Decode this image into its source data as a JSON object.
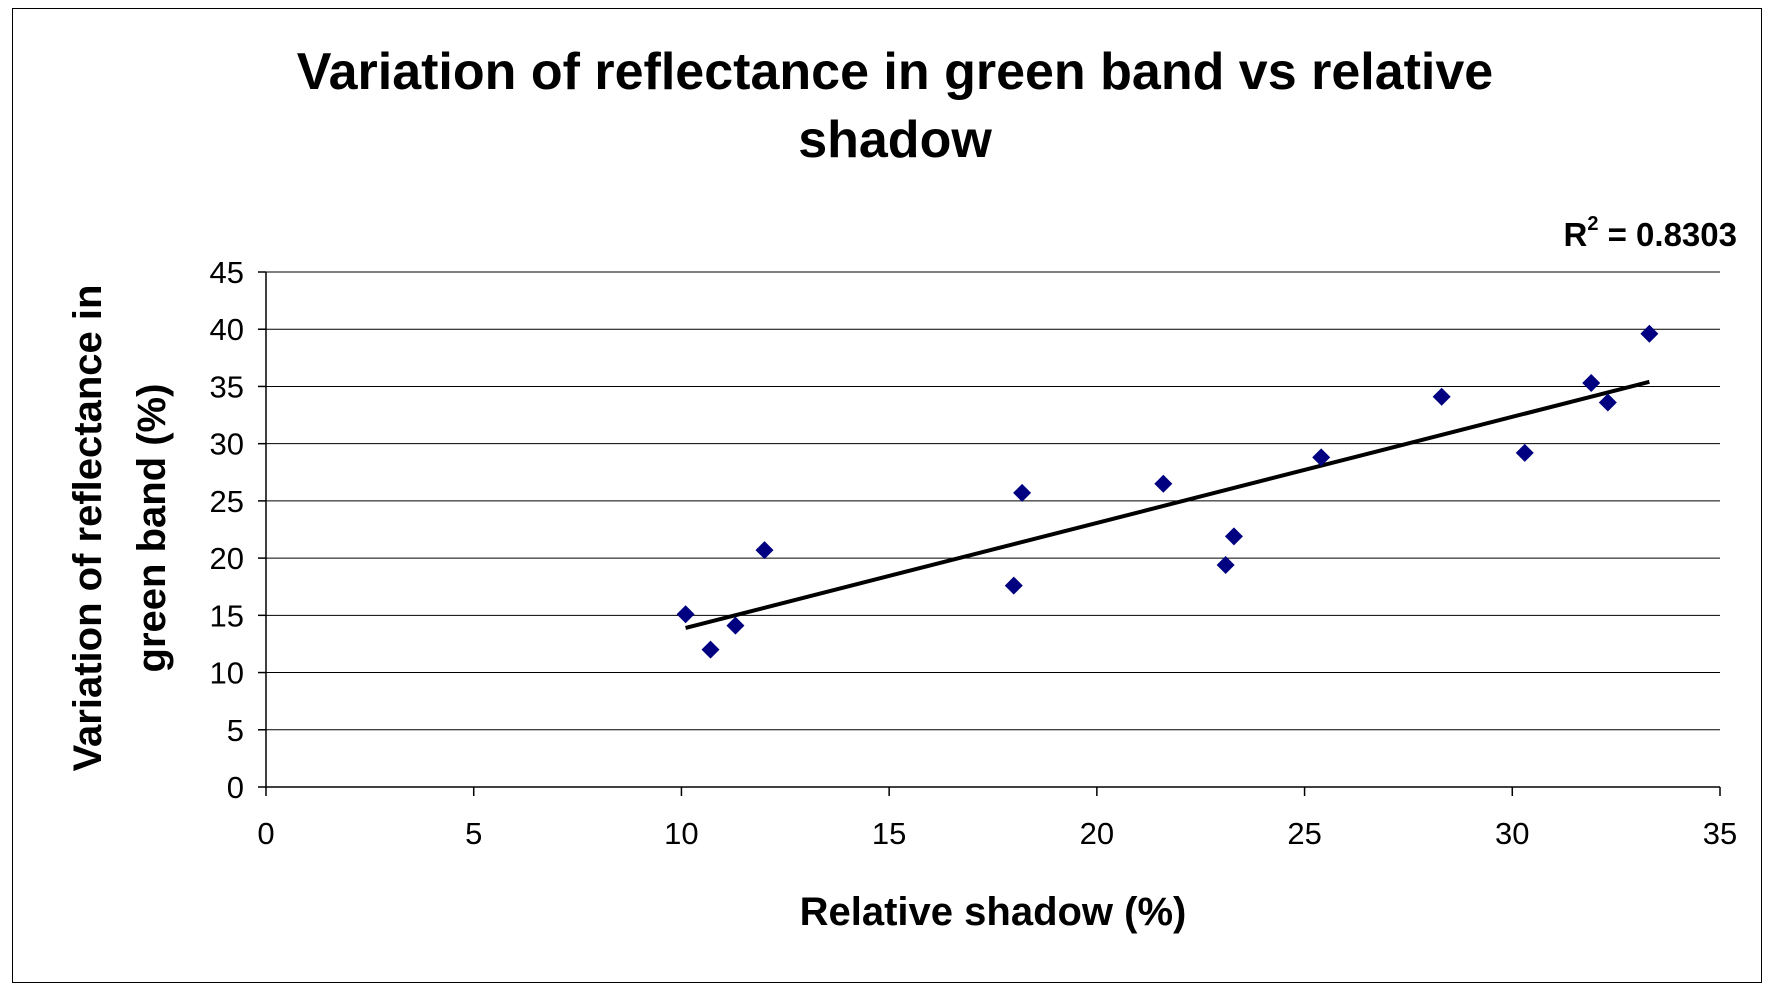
{
  "chart_data": {
    "type": "scatter",
    "title_lines": [
      "Variation of reflectance in green band vs relative",
      "shadow"
    ],
    "xlabel": "Relative shadow (%)",
    "ylabel_lines": [
      "Variation of reflectance in",
      "green band (%)"
    ],
    "xlim": [
      0,
      35
    ],
    "ylim": [
      0,
      45
    ],
    "xticks": [
      0,
      5,
      10,
      15,
      20,
      25,
      30,
      35
    ],
    "yticks": [
      0,
      5,
      10,
      15,
      20,
      25,
      30,
      35,
      40,
      45
    ],
    "grid": "horizontal",
    "r2_label": "R",
    "r2_sup": "2",
    "r2_value": " = 0.8303",
    "marker": "diamond",
    "marker_color": "#000080",
    "trendline_color": "#000000",
    "series": [
      {
        "points": [
          {
            "x": 10.1,
            "y": 15.1
          },
          {
            "x": 10.7,
            "y": 12.0
          },
          {
            "x": 11.3,
            "y": 14.1
          },
          {
            "x": 12.0,
            "y": 20.7
          },
          {
            "x": 18.0,
            "y": 17.6
          },
          {
            "x": 18.2,
            "y": 25.7
          },
          {
            "x": 21.6,
            "y": 26.5
          },
          {
            "x": 23.1,
            "y": 19.4
          },
          {
            "x": 23.3,
            "y": 21.9
          },
          {
            "x": 25.4,
            "y": 28.8
          },
          {
            "x": 28.3,
            "y": 34.1
          },
          {
            "x": 30.3,
            "y": 29.2
          },
          {
            "x": 31.9,
            "y": 35.3
          },
          {
            "x": 32.3,
            "y": 33.6
          },
          {
            "x": 33.3,
            "y": 39.6
          }
        ]
      }
    ],
    "trendline": [
      {
        "x": 10.1,
        "y": 13.9
      },
      {
        "x": 33.3,
        "y": 35.4
      }
    ]
  }
}
